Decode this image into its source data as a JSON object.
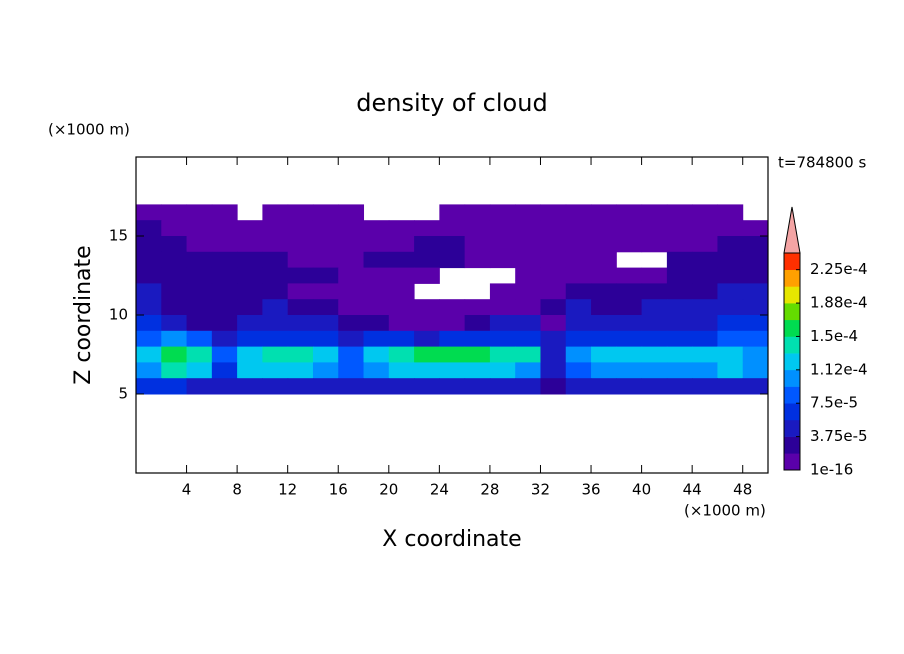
{
  "chart_data": {
    "type": "contour",
    "title": "density of cloud",
    "x_label": "X coordinate",
    "y_label": "Z coordinate",
    "x_unit": "(×1000 m)",
    "y_unit": "(×1000 m)",
    "annotation": "t=784800 s",
    "xlim": [
      0,
      50
    ],
    "ylim": [
      0,
      20
    ],
    "xticks": [
      4,
      8,
      12,
      16,
      20,
      24,
      28,
      32,
      36,
      40,
      44,
      48
    ],
    "yticks": [
      5,
      10,
      15
    ],
    "x": [
      1,
      3,
      5,
      7,
      9,
      11,
      13,
      15,
      17,
      19,
      21,
      23,
      25,
      27,
      29,
      31,
      33,
      35,
      37,
      39,
      41,
      43,
      45,
      47,
      49
    ],
    "y": [
      16.5,
      15.5,
      14.5,
      13.5,
      12.5,
      11.5,
      10.5,
      9.5,
      8.5,
      7.5,
      6.5,
      5.5
    ],
    "z": [
      [
        1e-05,
        1e-05,
        1e-05,
        1e-05,
        null,
        1e-05,
        1e-05,
        1e-05,
        1e-05,
        null,
        null,
        null,
        1e-05,
        1e-05,
        1e-05,
        1e-05,
        1e-05,
        1e-05,
        1e-05,
        1e-05,
        1e-05,
        1e-05,
        1e-05,
        1e-05,
        null
      ],
      [
        2.5e-05,
        1e-05,
        1e-05,
        1e-05,
        1e-05,
        1e-05,
        1e-05,
        1e-05,
        1e-05,
        1e-05,
        1e-05,
        1e-05,
        1e-05,
        1e-05,
        1e-05,
        1e-05,
        1e-05,
        1e-05,
        1e-05,
        1e-05,
        1e-05,
        1e-05,
        1e-05,
        1e-05,
        1e-05
      ],
      [
        2.5e-05,
        2.5e-05,
        1e-05,
        1e-05,
        1e-05,
        1e-05,
        1e-05,
        1e-05,
        1e-05,
        1e-05,
        1e-05,
        2.5e-05,
        2.5e-05,
        1e-05,
        1e-05,
        1e-05,
        1e-05,
        1e-05,
        1e-05,
        1e-05,
        1e-05,
        1e-05,
        1e-05,
        2.5e-05,
        2.5e-05
      ],
      [
        2.5e-05,
        2.5e-05,
        2.5e-05,
        2.5e-05,
        2.5e-05,
        2.5e-05,
        1e-05,
        1e-05,
        1e-05,
        2.5e-05,
        2.5e-05,
        2.5e-05,
        2.5e-05,
        1e-05,
        1e-05,
        1e-05,
        1e-05,
        1e-05,
        1e-05,
        null,
        null,
        2.5e-05,
        2.5e-05,
        2.5e-05,
        2.5e-05
      ],
      [
        2.5e-05,
        2.5e-05,
        2.5e-05,
        2.5e-05,
        2.5e-05,
        2.5e-05,
        2.5e-05,
        2.5e-05,
        1e-05,
        1e-05,
        1e-05,
        1e-05,
        null,
        null,
        null,
        1e-05,
        1e-05,
        1e-05,
        1e-05,
        1e-05,
        1e-05,
        2.5e-05,
        2.5e-05,
        2.5e-05,
        2.5e-05
      ],
      [
        4.5e-05,
        2.5e-05,
        2.5e-05,
        2.5e-05,
        2.5e-05,
        2.5e-05,
        1e-05,
        1e-05,
        1e-05,
        1e-05,
        1e-05,
        null,
        null,
        null,
        1e-05,
        1e-05,
        1e-05,
        2.5e-05,
        2.5e-05,
        2.5e-05,
        2.5e-05,
        2.5e-05,
        2.5e-05,
        4.5e-05,
        4.5e-05
      ],
      [
        4.5e-05,
        2.5e-05,
        2.5e-05,
        2.5e-05,
        2.5e-05,
        4.5e-05,
        2.5e-05,
        2.5e-05,
        1e-05,
        1e-05,
        1e-05,
        1e-05,
        1e-05,
        1e-05,
        1e-05,
        1e-05,
        2.5e-05,
        4.5e-05,
        2.5e-05,
        2.5e-05,
        4.5e-05,
        4.5e-05,
        4.5e-05,
        4.5e-05,
        4.5e-05
      ],
      [
        6.5e-05,
        4.5e-05,
        2.5e-05,
        2.5e-05,
        4.5e-05,
        4.5e-05,
        4.5e-05,
        4.5e-05,
        2.5e-05,
        2.5e-05,
        1e-05,
        1e-05,
        1e-05,
        2.5e-05,
        4.5e-05,
        4.5e-05,
        1e-05,
        4.5e-05,
        4.5e-05,
        4.5e-05,
        4.5e-05,
        4.5e-05,
        4.5e-05,
        6.5e-05,
        6.5e-05
      ],
      [
        8.5e-05,
        0.0001,
        8.5e-05,
        4.5e-05,
        6.5e-05,
        6.5e-05,
        6.5e-05,
        6.5e-05,
        4.5e-05,
        6.5e-05,
        6.5e-05,
        4.5e-05,
        6.5e-05,
        6.5e-05,
        6.5e-05,
        6.5e-05,
        4.5e-05,
        6.5e-05,
        6.5e-05,
        6.5e-05,
        6.5e-05,
        6.5e-05,
        6.5e-05,
        8.5e-05,
        8.5e-05
      ],
      [
        0.00012,
        0.00016,
        0.00014,
        8.5e-05,
        0.00012,
        0.00014,
        0.00014,
        0.00012,
        8.5e-05,
        0.00012,
        0.00014,
        0.00016,
        0.00016,
        0.00016,
        0.00014,
        0.00014,
        4.5e-05,
        0.0001,
        0.00012,
        0.00012,
        0.00012,
        0.00012,
        0.00012,
        0.00012,
        0.0001
      ],
      [
        0.0001,
        0.00014,
        0.00012,
        6.5e-05,
        0.00012,
        0.00012,
        0.00012,
        0.0001,
        8.5e-05,
        0.0001,
        0.00012,
        0.00012,
        0.00012,
        0.00012,
        0.00012,
        0.0001,
        4.5e-05,
        8.5e-05,
        0.0001,
        0.0001,
        0.0001,
        0.0001,
        0.0001,
        0.00012,
        0.0001
      ],
      [
        6.5e-05,
        6.5e-05,
        4.5e-05,
        4.5e-05,
        4.5e-05,
        4.5e-05,
        4.5e-05,
        4.5e-05,
        4.5e-05,
        4.5e-05,
        4.5e-05,
        4.5e-05,
        4.5e-05,
        4.5e-05,
        4.5e-05,
        4.5e-05,
        2.5e-05,
        4.5e-05,
        4.5e-05,
        4.5e-05,
        4.5e-05,
        4.5e-05,
        4.5e-05,
        4.5e-05,
        4.5e-05
      ]
    ],
    "colorbar": {
      "clim": [
        1e-16,
        0.00024375
      ],
      "ticks": [
        1e-16,
        {
          "value": 3.75e-05,
          "label": "3.75e-5"
        },
        {
          "value": 7.5e-05,
          "label": "7.5e-5"
        },
        {
          "value": 0.0001125,
          "label": "1.12e-4"
        },
        {
          "value": 0.00015,
          "label": "1.5e-4"
        },
        {
          "value": 0.0001875,
          "label": "1.88e-4"
        },
        {
          "value": 0.000225,
          "label": "2.25e-4"
        }
      ],
      "colors": [
        "#5a00aa",
        "#2c0098",
        "#1a1ac0",
        "#0030e0",
        "#0058ff",
        "#0090ff",
        "#00c8f0",
        "#00e0b0",
        "#00dc50",
        "#64dc00",
        "#e6e600",
        "#ffa000",
        "#ff3000"
      ],
      "extend_color": "#f4a4a4"
    }
  }
}
